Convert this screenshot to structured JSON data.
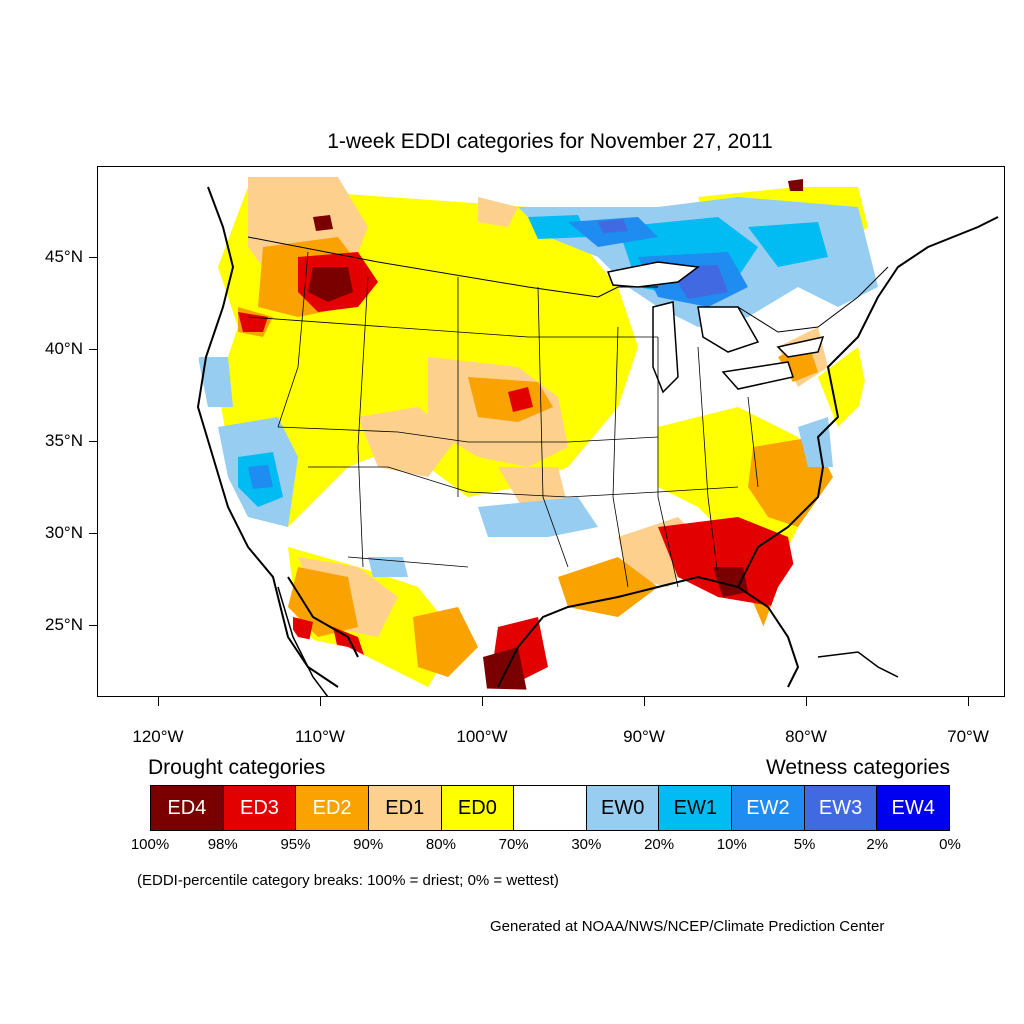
{
  "title": "1-week EDDI categories for November 27, 2011",
  "axes": {
    "lat_ticks": [
      {
        "label": "45°N",
        "value": 45
      },
      {
        "label": "40°N",
        "value": 40
      },
      {
        "label": "35°N",
        "value": 35
      },
      {
        "label": "30°N",
        "value": 30
      },
      {
        "label": "25°N",
        "value": 25
      }
    ],
    "lon_ticks": [
      {
        "label": "120°W",
        "value": -120
      },
      {
        "label": "110°W",
        "value": -110
      },
      {
        "label": "100°W",
        "value": -100
      },
      {
        "label": "90°W",
        "value": -90
      },
      {
        "label": "80°W",
        "value": -80
      },
      {
        "label": "70°W",
        "value": -70
      }
    ]
  },
  "legend": {
    "drought_heading": "Drought categories",
    "wetness_heading": "Wetness categories",
    "categories": [
      {
        "label": "ED4",
        "color": "#7a0000",
        "text_color": "#ffffff"
      },
      {
        "label": "ED3",
        "color": "#e30000",
        "text_color": "#ffffff"
      },
      {
        "label": "ED2",
        "color": "#f9a200",
        "text_color": "#ffffff"
      },
      {
        "label": "ED1",
        "color": "#fdd08d",
        "text_color": "#000000"
      },
      {
        "label": "ED0",
        "color": "#ffff00",
        "text_color": "#000000"
      },
      {
        "label": "",
        "color": "#ffffff",
        "text_color": "#000000"
      },
      {
        "label": "EW0",
        "color": "#96cdf0",
        "text_color": "#000000"
      },
      {
        "label": "EW1",
        "color": "#00bcf2",
        "text_color": "#000000"
      },
      {
        "label": "EW2",
        "color": "#1e8cf0",
        "text_color": "#ffffff"
      },
      {
        "label": "EW3",
        "color": "#4169e1",
        "text_color": "#ffffff"
      },
      {
        "label": "EW4",
        "color": "#0000f0",
        "text_color": "#ffffff"
      }
    ],
    "breaks": [
      "100%",
      "98%",
      "95%",
      "90%",
      "80%",
      "70%",
      "30%",
      "20%",
      "10%",
      "5%",
      "2%",
      "0%"
    ]
  },
  "note": "(EDDI-percentile category breaks: 100% = driest; 0% = wettest)",
  "credit": "Generated at NOAA/NWS/NCEP/Climate Prediction Center"
}
